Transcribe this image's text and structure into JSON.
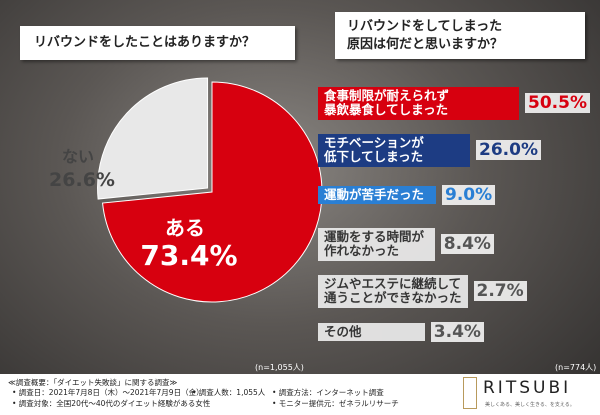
{
  "chart_data": [
    {
      "type": "pie",
      "title": "リバウンドをしたことはありますか？",
      "categories": [
        "ある",
        "ない"
      ],
      "values": [
        73.4,
        26.6
      ],
      "value_labels": [
        "73.4%",
        "26.6%"
      ],
      "colors": [
        "#d7000f",
        "#e8e8e8"
      ],
      "note": "(n=1,055人)"
    },
    {
      "type": "bar",
      "title": "リバウンドをしてしまった\n原因は何だと思いますか？",
      "categories": [
        "食事制限が耐えられず\n暴飲暴食してしまった",
        "モチベーションが\n低下してしまった",
        "運動が苦手だった",
        "運動をする時間が\n作れなかった",
        "ジムやエステに継続して\n通うことができなかった",
        "その他"
      ],
      "values": [
        50.5,
        26.0,
        9.0,
        8.4,
        2.7,
        3.4
      ],
      "value_labels": [
        "50.5%",
        "26.0%",
        "9.0%",
        "8.4%",
        "2.7%",
        "3.4%"
      ],
      "colors": [
        "#d7000f",
        "#1d3c83",
        "#2a7fd4",
        "#ececec",
        "#ececec",
        "#ececec"
      ],
      "note": "(n=774人)"
    }
  ],
  "survey": {
    "heading": "≪調査概要：「ダイエット失敗談」に関する調査≫",
    "items": [
      "• 調査日：2021年7月8日（木）～2021年7月9日（金）",
      "• 調査人数：1,055人",
      "• 調査方法：インターネット調査",
      "• 調査対象：全国20代～40代のダイエット経験がある女性",
      "• モニター提供元：ゼネラルリサーチ"
    ]
  },
  "brand": {
    "name": "RITSUBI",
    "tagline": "美しくある、美しく生きる、を支える。"
  }
}
